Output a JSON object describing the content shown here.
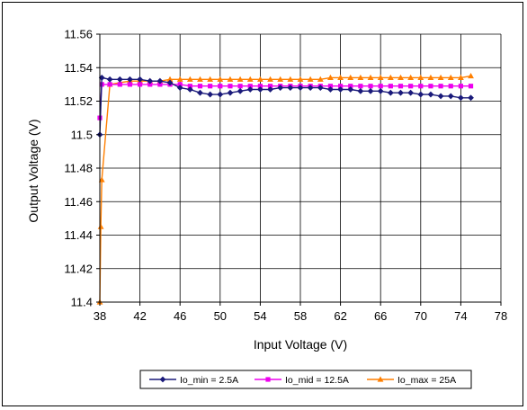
{
  "chart_data": {
    "type": "line",
    "title": "",
    "xlabel": "Input Voltage (V)",
    "ylabel": "Output Voltage (V)",
    "xlim": [
      38,
      78
    ],
    "ylim": [
      11.4,
      11.56
    ],
    "x_ticks": [
      38,
      42,
      46,
      50,
      54,
      58,
      62,
      66,
      70,
      74,
      78
    ],
    "x_tick_labels": [
      "38",
      "42",
      "46",
      "50",
      "54",
      "58",
      "62",
      "66",
      "70",
      "74",
      "78"
    ],
    "y_ticks": [
      11.4,
      11.42,
      11.44,
      11.46,
      11.48,
      11.5,
      11.52,
      11.54,
      11.56
    ],
    "y_tick_labels": [
      "11.4",
      "11.42",
      "11.44",
      "11.46",
      "11.48",
      "11.5",
      "11.52",
      "11.54",
      "11.56"
    ],
    "grid": true,
    "legend_position": "bottom",
    "series": [
      {
        "name": "Io_min = 2.5A",
        "color": "#1a1a7a",
        "marker": "diamond",
        "points": [
          [
            38,
            11.5
          ],
          [
            38.2,
            11.534
          ],
          [
            39,
            11.533
          ],
          [
            40,
            11.533
          ],
          [
            41,
            11.533
          ],
          [
            42,
            11.533
          ],
          [
            43,
            11.532
          ],
          [
            44,
            11.532
          ],
          [
            45,
            11.531
          ],
          [
            46,
            11.528
          ],
          [
            47,
            11.527
          ],
          [
            48,
            11.525
          ],
          [
            49,
            11.524
          ],
          [
            50,
            11.524
          ],
          [
            51,
            11.525
          ],
          [
            52,
            11.526
          ],
          [
            53,
            11.527
          ],
          [
            54,
            11.527
          ],
          [
            55,
            11.527
          ],
          [
            56,
            11.528
          ],
          [
            57,
            11.528
          ],
          [
            58,
            11.528
          ],
          [
            59,
            11.528
          ],
          [
            60,
            11.528
          ],
          [
            61,
            11.527
          ],
          [
            62,
            11.527
          ],
          [
            63,
            11.527
          ],
          [
            64,
            11.526
          ],
          [
            65,
            11.526
          ],
          [
            66,
            11.526
          ],
          [
            67,
            11.525
          ],
          [
            68,
            11.525
          ],
          [
            69,
            11.525
          ],
          [
            70,
            11.524
          ],
          [
            71,
            11.524
          ],
          [
            72,
            11.523
          ],
          [
            73,
            11.523
          ],
          [
            74,
            11.522
          ],
          [
            75,
            11.522
          ]
        ]
      },
      {
        "name": "Io_mid = 12.5A",
        "color": "#ee00ee",
        "marker": "square",
        "points": [
          [
            38,
            11.51
          ],
          [
            38.2,
            11.53
          ],
          [
            39,
            11.53
          ],
          [
            40,
            11.53
          ],
          [
            41,
            11.53
          ],
          [
            42,
            11.53
          ],
          [
            43,
            11.53
          ],
          [
            44,
            11.53
          ],
          [
            45,
            11.53
          ],
          [
            46,
            11.53
          ],
          [
            47,
            11.529
          ],
          [
            48,
            11.529
          ],
          [
            49,
            11.529
          ],
          [
            50,
            11.529
          ],
          [
            51,
            11.529
          ],
          [
            52,
            11.529
          ],
          [
            53,
            11.529
          ],
          [
            54,
            11.529
          ],
          [
            55,
            11.529
          ],
          [
            56,
            11.529
          ],
          [
            57,
            11.529
          ],
          [
            58,
            11.529
          ],
          [
            59,
            11.529
          ],
          [
            60,
            11.529
          ],
          [
            61,
            11.529
          ],
          [
            62,
            11.529
          ],
          [
            63,
            11.529
          ],
          [
            64,
            11.529
          ],
          [
            65,
            11.529
          ],
          [
            66,
            11.529
          ],
          [
            67,
            11.529
          ],
          [
            68,
            11.529
          ],
          [
            69,
            11.529
          ],
          [
            70,
            11.529
          ],
          [
            71,
            11.529
          ],
          [
            72,
            11.529
          ],
          [
            73,
            11.529
          ],
          [
            74,
            11.529
          ],
          [
            75,
            11.529
          ]
        ]
      },
      {
        "name": "Io_max = 25A",
        "color": "#ff7f00",
        "marker": "triangle",
        "points": [
          [
            38,
            11.4
          ],
          [
            38.1,
            11.445
          ],
          [
            38.2,
            11.473
          ],
          [
            39,
            11.53
          ],
          [
            40,
            11.531
          ],
          [
            41,
            11.532
          ],
          [
            42,
            11.532
          ],
          [
            43,
            11.532
          ],
          [
            44,
            11.532
          ],
          [
            45,
            11.533
          ],
          [
            46,
            11.533
          ],
          [
            47,
            11.533
          ],
          [
            48,
            11.533
          ],
          [
            49,
            11.533
          ],
          [
            50,
            11.533
          ],
          [
            51,
            11.533
          ],
          [
            52,
            11.533
          ],
          [
            53,
            11.533
          ],
          [
            54,
            11.533
          ],
          [
            55,
            11.533
          ],
          [
            56,
            11.533
          ],
          [
            57,
            11.533
          ],
          [
            58,
            11.533
          ],
          [
            59,
            11.533
          ],
          [
            60,
            11.533
          ],
          [
            61,
            11.534
          ],
          [
            62,
            11.534
          ],
          [
            63,
            11.534
          ],
          [
            64,
            11.534
          ],
          [
            65,
            11.534
          ],
          [
            66,
            11.534
          ],
          [
            67,
            11.534
          ],
          [
            68,
            11.534
          ],
          [
            69,
            11.534
          ],
          [
            70,
            11.534
          ],
          [
            71,
            11.534
          ],
          [
            72,
            11.534
          ],
          [
            73,
            11.534
          ],
          [
            74,
            11.534
          ],
          [
            75,
            11.535
          ]
        ]
      }
    ]
  }
}
